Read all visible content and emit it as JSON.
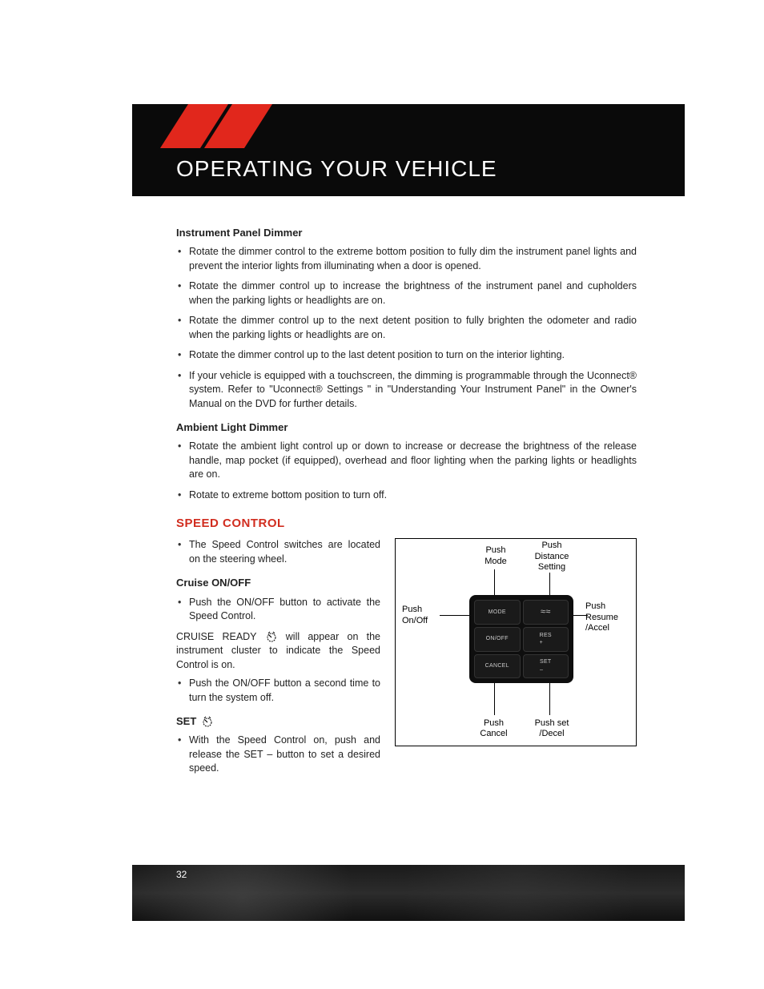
{
  "header": {
    "title": "OPERATING YOUR VEHICLE",
    "slash_color": "#e1271c",
    "band_color": "#0a0a0a"
  },
  "page_number": "32",
  "sections": {
    "instrument_panel": {
      "heading": "Instrument Panel Dimmer",
      "bullets": [
        "Rotate the dimmer control to the extreme bottom position to fully dim the instrument panel lights and prevent the interior lights from illuminating when a door is opened.",
        "Rotate the dimmer control up to increase the brightness of the instrument panel and cupholders when the parking lights or headlights are on.",
        "Rotate the dimmer control up to the next detent position to fully brighten the odometer and radio when the parking lights or headlights are on.",
        "Rotate the dimmer control up to the last detent position to turn on the interior lighting.",
        "If your vehicle is equipped with a touchscreen, the dimming is programmable through the Uconnect® system. Refer to \"Uconnect® Settings \" in \"Understanding Your Instrument Panel\" in the Owner's Manual on the DVD for further details."
      ]
    },
    "ambient": {
      "heading": "Ambient Light Dimmer",
      "bullets": [
        "Rotate the ambient light control up or down to increase or decrease the brightness of the release handle, map pocket (if equipped), overhead and floor lighting when the parking lights or headlights are on.",
        "Rotate to extreme bottom position to turn off."
      ]
    },
    "speed_control": {
      "heading": "SPEED CONTROL",
      "intro_bullet": "The Speed Control switches are located on the steering wheel.",
      "cruise": {
        "heading": "Cruise ON/OFF",
        "bullet1": "Push the ON/OFF button to activate the Speed Control.",
        "ready_line_a": "CRUISE READY ",
        "ready_line_b": " will appear on the instrument cluster to indicate the Speed Control is on.",
        "bullet2": "Push the ON/OFF button a second time to turn the system off."
      },
      "set": {
        "heading": "SET",
        "bullet": "With the Speed Control on, push and release the SET – button to set a desired speed."
      }
    }
  },
  "diagram": {
    "labels": {
      "mode": "Push\nMode",
      "distance": "Push\nDistance\nSetting",
      "onoff": "Push\nOn/Off",
      "resume": "Push\nResume\n/Accel",
      "cancel": "Push\nCancel",
      "setdecel": "Push set\n/Decel"
    },
    "buttons": {
      "mode": "MODE",
      "dist": "≈≈",
      "onoff": "ON/OFF",
      "res": "RES\n+",
      "cancel": "CANCEL",
      "set": "SET\n–"
    }
  }
}
